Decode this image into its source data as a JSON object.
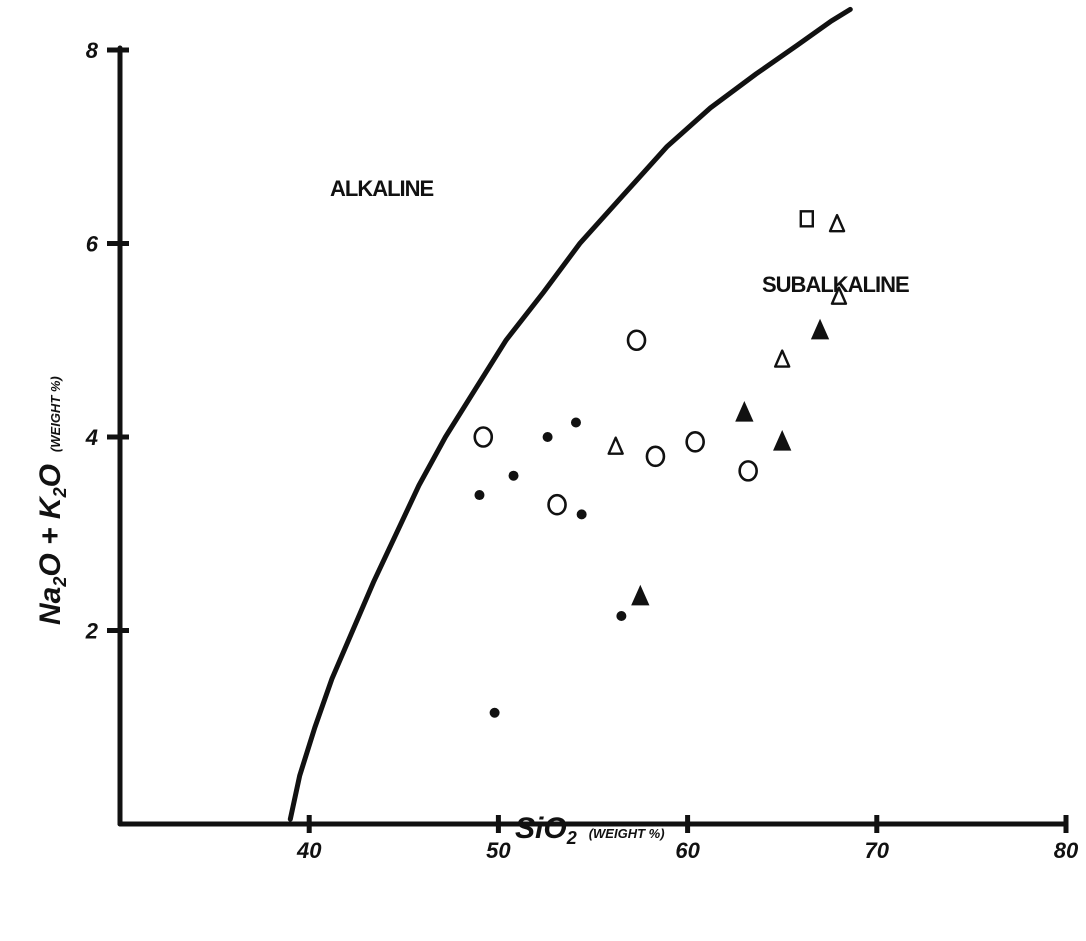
{
  "chart_data": {
    "type": "scatter",
    "title": "",
    "xlabel": "SiO",
    "xlabel_sub": "2",
    "xlabel_unit": "(WEIGHT %)",
    "ylabel": "Na",
    "ylabel_rest": "O + K",
    "ylabel_rest2": "O",
    "ylabel_sub": "2",
    "ylabel_unit": "(WEIGHT %)",
    "xlim": [
      30,
      80
    ],
    "ylim": [
      0,
      8
    ],
    "x_ticks": [
      40,
      50,
      60,
      70,
      80
    ],
    "x_tick_labels": [
      "40",
      "50",
      "60",
      "70",
      "80"
    ],
    "y_ticks": [
      2,
      4,
      6,
      8
    ],
    "y_tick_labels": [
      "2",
      "4",
      "6",
      "8"
    ],
    "grid": false,
    "region_labels": {
      "alkaline": "ALKALINE",
      "subalkaline": "SUBALKALINE"
    },
    "divider_curve": {
      "x": [
        39.0,
        39.5,
        40.3,
        41.2,
        42.3,
        43.4,
        44.6,
        45.8,
        47.2,
        48.8,
        50.4,
        52.4,
        54.3,
        56.6,
        58.9,
        61.2,
        63.6,
        65.8,
        67.6,
        68.6
      ],
      "y": [
        0.05,
        0.5,
        1.0,
        1.5,
        2.0,
        2.5,
        3.0,
        3.5,
        4.0,
        4.5,
        5.0,
        5.5,
        6.0,
        6.5,
        7.0,
        7.4,
        7.75,
        8.05,
        8.3,
        8.42
      ]
    },
    "series": [
      {
        "marker": "filled-circle",
        "x": [
          49.0,
          50.8,
          52.6,
          54.1,
          54.4,
          56.5,
          49.8
        ],
        "y": [
          3.4,
          3.6,
          4.0,
          4.15,
          3.2,
          2.15,
          1.15
        ]
      },
      {
        "marker": "open-circle",
        "x": [
          49.2,
          53.1,
          57.3,
          58.3,
          60.4,
          63.2
        ],
        "y": [
          4.0,
          3.3,
          5.0,
          3.8,
          3.95,
          3.65
        ]
      },
      {
        "marker": "open-triangle",
        "x": [
          56.2,
          65.0,
          67.9,
          68.0
        ],
        "y": [
          3.9,
          4.8,
          6.2,
          5.45
        ]
      },
      {
        "marker": "filled-triangle",
        "x": [
          57.5,
          63.0,
          65.0,
          67.0
        ],
        "y": [
          2.35,
          4.25,
          3.95,
          5.1
        ]
      },
      {
        "marker": "open-square",
        "x": [
          66.3
        ],
        "y": [
          6.25
        ]
      }
    ]
  }
}
